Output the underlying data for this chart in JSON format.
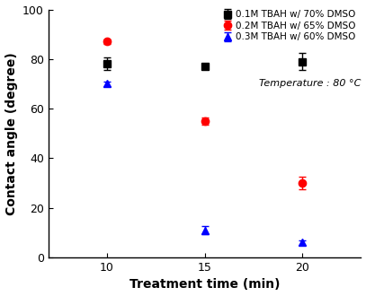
{
  "series": [
    {
      "label": "0.1M TBAH w/ 70% DMSO",
      "color": "black",
      "marker": "s",
      "x": [
        10,
        15,
        20
      ],
      "y": [
        78,
        77,
        79
      ],
      "yerr": [
        2.5,
        1.0,
        3.5
      ]
    },
    {
      "label": "0.2M TBAH w/ 65% DMSO",
      "color": "red",
      "marker": "o",
      "x": [
        10,
        15,
        20
      ],
      "y": [
        87,
        55,
        30
      ],
      "yerr": [
        1.0,
        1.5,
        2.5
      ]
    },
    {
      "label": "0.3M TBAH w/ 60% DMSO",
      "color": "blue",
      "marker": "^",
      "x": [
        10,
        15,
        20
      ],
      "y": [
        70,
        11,
        6
      ],
      "yerr": [
        1.0,
        1.5,
        1.0
      ]
    }
  ],
  "annotation": "Temperature : 80 °C",
  "xlabel": "Treatment time (min)",
  "ylabel": "Contact angle (degree)",
  "xlim": [
    7,
    23
  ],
  "ylim": [
    0,
    100
  ],
  "xticks": [
    10,
    15,
    20
  ],
  "yticks": [
    0,
    20,
    40,
    60,
    80,
    100
  ],
  "background_color": "#ffffff",
  "markersize": 6,
  "capsize": 3,
  "elinewidth": 1.0,
  "legend_fontsize": 7.5,
  "axis_fontsize": 10,
  "tick_fontsize": 9,
  "annotation_fontsize": 8.0
}
